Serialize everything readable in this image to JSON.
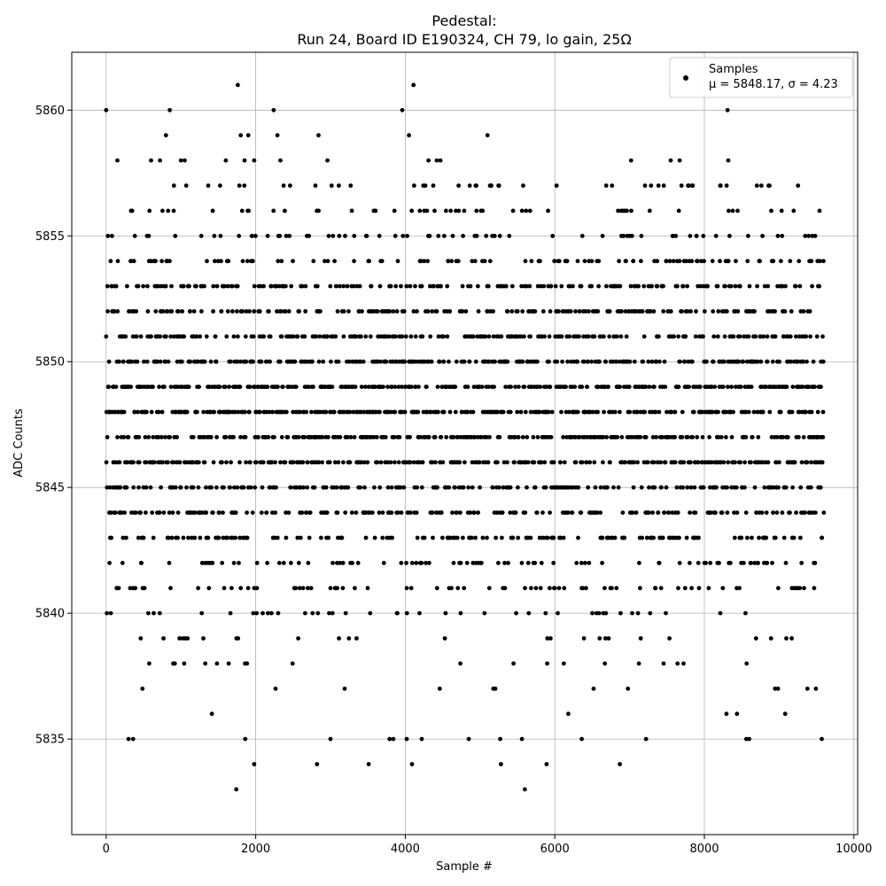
{
  "chart_data": {
    "type": "scatter",
    "title_line1": "Pedestal:",
    "title_line2": "Run 24, Board ID E190324, CH 79, lo gain, 25Ω",
    "xlabel": "Sample #",
    "ylabel": "ADC Counts",
    "xlim": [
      -460,
      10050
    ],
    "ylim": [
      5831.2,
      5862.3
    ],
    "xticks": [
      0,
      2000,
      4000,
      6000,
      8000,
      10000
    ],
    "yticks": [
      5835,
      5840,
      5845,
      5850,
      5855,
      5860
    ],
    "grid": true,
    "legend_position": "upper-right",
    "marker_color": "#000000",
    "n_samples": 9600,
    "series": [
      {
        "name": "Samples",
        "legend_line2": "μ = 5848.17, σ = 4.23",
        "mean": 5848.17,
        "std": 4.23,
        "outlier_points": [
          [
            0,
            5860
          ],
          [
            1760,
            5861
          ],
          [
            4110,
            5861
          ],
          [
            850,
            5860
          ],
          [
            2240,
            5860
          ],
          [
            3960,
            5860
          ],
          [
            8310,
            5860
          ],
          [
            800,
            5859
          ],
          [
            1800,
            5859
          ],
          [
            1900,
            5859
          ],
          [
            2290,
            5859
          ],
          [
            2840,
            5859
          ],
          [
            4050,
            5859
          ],
          [
            5100,
            5859
          ],
          [
            150,
            5858
          ],
          [
            600,
            5858
          ],
          [
            720,
            5858
          ],
          [
            1000,
            5858
          ],
          [
            1050,
            5858
          ],
          [
            1600,
            5858
          ],
          [
            1850,
            5858
          ],
          [
            1980,
            5858
          ],
          [
            2330,
            5858
          ],
          [
            2960,
            5858
          ],
          [
            4310,
            5858
          ],
          [
            4420,
            5858
          ],
          [
            4470,
            5858
          ],
          [
            7020,
            5858
          ],
          [
            7550,
            5858
          ],
          [
            7670,
            5858
          ],
          [
            8320,
            5858
          ],
          [
            1740,
            5833
          ],
          [
            5600,
            5833
          ],
          [
            1980,
            5834
          ],
          [
            2820,
            5834
          ],
          [
            3510,
            5834
          ],
          [
            4090,
            5834
          ],
          [
            5280,
            5834
          ],
          [
            5890,
            5834
          ],
          [
            6870,
            5834
          ],
          [
            300,
            5835
          ],
          [
            360,
            5835
          ],
          [
            1860,
            5835
          ],
          [
            3000,
            5835
          ],
          [
            3790,
            5835
          ],
          [
            3840,
            5835
          ],
          [
            4020,
            5835
          ],
          [
            4220,
            5835
          ],
          [
            4850,
            5835
          ],
          [
            5270,
            5835
          ],
          [
            5560,
            5835
          ],
          [
            6360,
            5835
          ],
          [
            7220,
            5835
          ],
          [
            8560,
            5835
          ],
          [
            8600,
            5835
          ],
          [
            9570,
            5835
          ]
        ]
      }
    ]
  }
}
